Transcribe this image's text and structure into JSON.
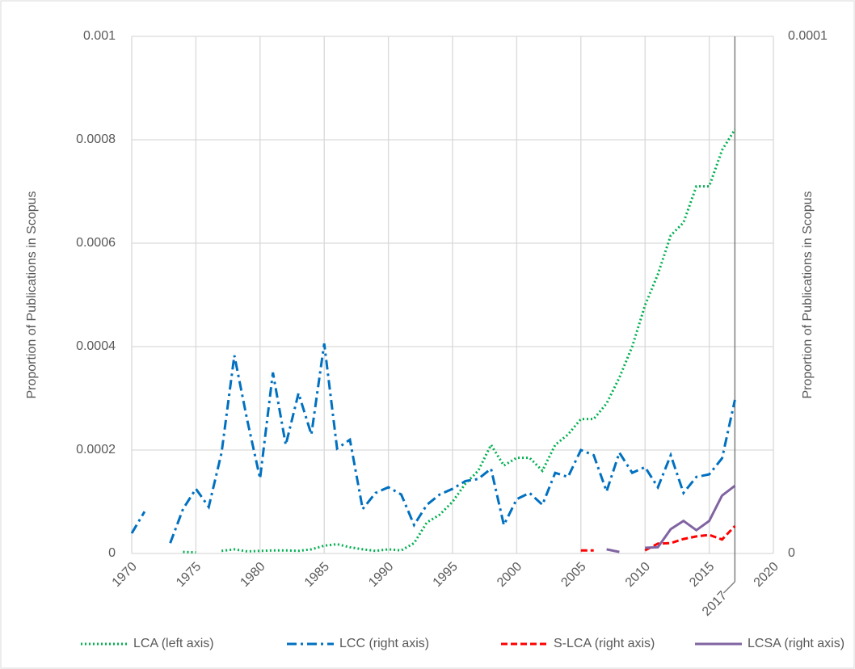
{
  "chart_data": {
    "type": "line",
    "y_label": "Proportion of Publications in Scopus",
    "y2_label": "Proportion of Publications in Scopus",
    "x": [
      1970,
      1971,
      1972,
      1973,
      1974,
      1975,
      1976,
      1977,
      1978,
      1979,
      1980,
      1981,
      1982,
      1983,
      1984,
      1985,
      1986,
      1987,
      1988,
      1989,
      1990,
      1991,
      1992,
      1993,
      1994,
      1995,
      1996,
      1997,
      1998,
      1999,
      2000,
      2001,
      2002,
      2003,
      2004,
      2005,
      2006,
      2007,
      2008,
      2009,
      2010,
      2011,
      2012,
      2013,
      2014,
      2015,
      2016,
      2017
    ],
    "xlim": [
      1970,
      2020
    ],
    "xticks": [
      1970,
      1975,
      1980,
      1985,
      1990,
      1995,
      2000,
      2005,
      2010,
      2015,
      2020
    ],
    "ylim": [
      0,
      0.001
    ],
    "yticks": [
      0,
      0.0002,
      0.0004,
      0.0006,
      0.0008,
      0.001
    ],
    "y2lim": [
      0,
      0.0001
    ],
    "y2ticks": [
      0,
      0.0001
    ],
    "grid": true,
    "vline": 2017,
    "legend": "bottom",
    "series": [
      {
        "name": "LCA (left axis)",
        "color": "#00b050",
        "style": "dotted",
        "values": [
          null,
          null,
          null,
          null,
          3e-06,
          2e-06,
          null,
          5e-06,
          8e-06,
          4e-06,
          5e-06,
          6e-06,
          6e-06,
          5e-06,
          8e-06,
          1.5e-05,
          1.8e-05,
          1.2e-05,
          8e-06,
          5e-06,
          8e-06,
          6e-06,
          2e-05,
          6e-05,
          7.5e-05,
          0.0001,
          0.000135,
          0.00016,
          0.00021,
          0.00017,
          0.000185,
          0.000185,
          0.00016,
          0.00021,
          0.00023,
          0.00026,
          0.00026,
          0.00029,
          0.00034,
          0.0004,
          0.00048,
          0.00054,
          0.000615,
          0.00064,
          0.00071,
          0.00071,
          0.00078,
          0.00082
        ]
      },
      {
        "name": "LCC (right axis)",
        "color": "#0070c0",
        "style": "dashdot",
        "axis": "y2",
        "values": [
          3.9e-06,
          8.1e-06,
          null,
          2e-06,
          8.6e-06,
          1.25e-05,
          9e-06,
          1.95e-05,
          3.83e-05,
          2.58e-05,
          1.45e-05,
          3.5e-05,
          2.1e-05,
          3.1e-05,
          2.3e-05,
          4.06e-05,
          2.03e-05,
          2.2e-05,
          8.6e-06,
          1.17e-05,
          1.28e-05,
          1.14e-05,
          5.5e-06,
          9.4e-06,
          1.14e-05,
          1.25e-05,
          1.4e-05,
          1.44e-05,
          1.64e-05,
          5.5e-06,
          1.05e-05,
          1.17e-05,
          9.4e-06,
          1.56e-05,
          1.48e-05,
          2e-05,
          1.9e-05,
          1.2e-05,
          1.95e-05,
          1.56e-05,
          1.67e-05,
          1.28e-05,
          1.9e-05,
          1.17e-05,
          1.48e-05,
          1.53e-05,
          1.84e-05,
          2.97e-05
        ]
      },
      {
        "name": "S-LCA (right axis)",
        "color": "#ff0000",
        "style": "dashed",
        "axis": "y2",
        "values": [
          null,
          null,
          null,
          null,
          null,
          null,
          null,
          null,
          null,
          null,
          null,
          null,
          null,
          null,
          null,
          null,
          null,
          null,
          null,
          null,
          null,
          null,
          null,
          null,
          null,
          null,
          null,
          null,
          null,
          null,
          null,
          null,
          null,
          null,
          null,
          6e-07,
          6e-07,
          null,
          null,
          null,
          6e-07,
          1.9e-06,
          2e-06,
          2.8e-06,
          3.3e-06,
          3.6e-06,
          2.7e-06,
          5.3e-06
        ]
      },
      {
        "name": "LCSA (right axis)",
        "color": "#8064a2",
        "style": "solid",
        "axis": "y2",
        "values": [
          null,
          null,
          null,
          null,
          null,
          null,
          null,
          null,
          null,
          null,
          null,
          null,
          null,
          null,
          null,
          null,
          null,
          null,
          null,
          null,
          null,
          null,
          null,
          null,
          null,
          null,
          null,
          null,
          null,
          null,
          null,
          null,
          null,
          null,
          null,
          null,
          null,
          8e-07,
          3e-07,
          null,
          1.1e-06,
          1.2e-06,
          4.7e-06,
          6.3e-06,
          4.5e-06,
          6.3e-06,
          1.12e-05,
          1.31e-05
        ]
      }
    ]
  }
}
